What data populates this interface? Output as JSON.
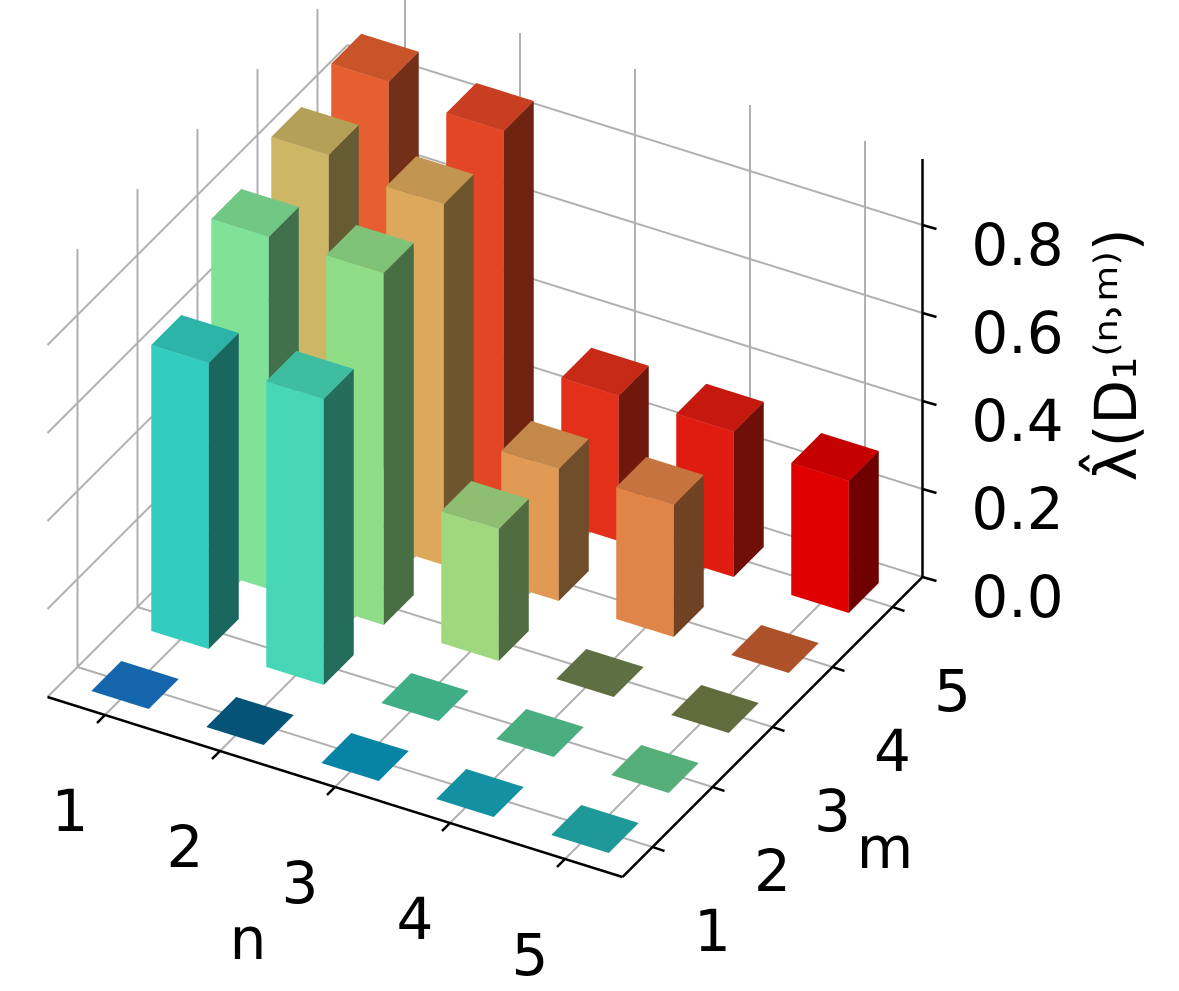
{
  "chart_data": {
    "type": "bar3d",
    "xlabel": "n",
    "ylabel": "m",
    "zlabel": "λ̂(D₁⁽ⁿ˒ᵐ⁾)",
    "xticks": [
      1,
      2,
      3,
      4,
      5
    ],
    "yticks": [
      1,
      2,
      3,
      4,
      5
    ],
    "xlim": [
      0.5,
      5.5
    ],
    "ylim": [
      0.5,
      5.5
    ],
    "zlim": [
      0,
      0.95
    ],
    "zticks": [
      {
        "value": 0,
        "label": "0.0"
      },
      0.2,
      0.4,
      0.6,
      0.8
    ],
    "grid": true,
    "values": [
      [
        0,
        0.65,
        0.8,
        0.85,
        0.88
      ],
      [
        0,
        0.65,
        0.8,
        0.82,
        0.85
      ],
      [
        0,
        0,
        0.3,
        0.3,
        0.33
      ],
      [
        0,
        0,
        0,
        0.3,
        0.33
      ],
      [
        0,
        0,
        0,
        0,
        0.3
      ]
    ],
    "colors": [
      [
        "#1874c4",
        "#33cdbf",
        "#80e296",
        "#cdb665",
        "#e55f30"
      ],
      [
        "#065e86",
        "#47d7b6",
        "#90dd88",
        "#dca95c",
        "#e24624"
      ],
      [
        "#0896bc",
        "#48c698",
        "#a0d880",
        "#e09a55",
        "#e2301a"
      ],
      [
        "#16a4b8",
        "#55c692",
        "#6b7f4a",
        "#e08448",
        "#e01b10"
      ],
      [
        "#22adae",
        "#62c68a",
        "#6e7a44",
        "#c55c30",
        "#e00000"
      ]
    ]
  }
}
